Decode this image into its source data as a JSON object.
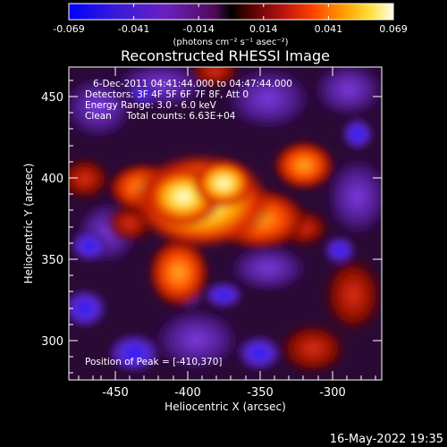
{
  "colorbar": {
    "ticks": [
      "-0.069",
      "-0.041",
      "-0.014",
      "0.014",
      "0.041",
      "0.069"
    ],
    "unit_label": "(photons cm⁻² s⁻¹ asec⁻²)"
  },
  "title": "Reconstructed RHESSI Image",
  "annotations": {
    "time_range": "6-Dec-2011 04:41:44.000 to 04:47:44.000",
    "detectors": "Detectors: 3F 4F 5F 6F 7F 8F, Att 0",
    "energy_range": "Energy Range: 3.0 - 6.0 keV",
    "algorithm_counts": "Clean     Total counts: 6.63E+04",
    "peak_position": "Position of Peak = [-410,370]"
  },
  "axes": {
    "x_label": "Heliocentric X (arcsec)",
    "y_label": "Heliocentric Y (arcsec)",
    "x_ticks": [
      "-450",
      "-400",
      "-350",
      "-300"
    ],
    "y_ticks": [
      "450",
      "400",
      "350",
      "300"
    ],
    "x_range": [
      -480,
      -285
    ],
    "y_range": [
      278,
      472
    ]
  },
  "footer": {
    "timestamp": "16-May-2022 19:35"
  },
  "colors": {
    "background": "#000000",
    "text": "#ffffff"
  }
}
